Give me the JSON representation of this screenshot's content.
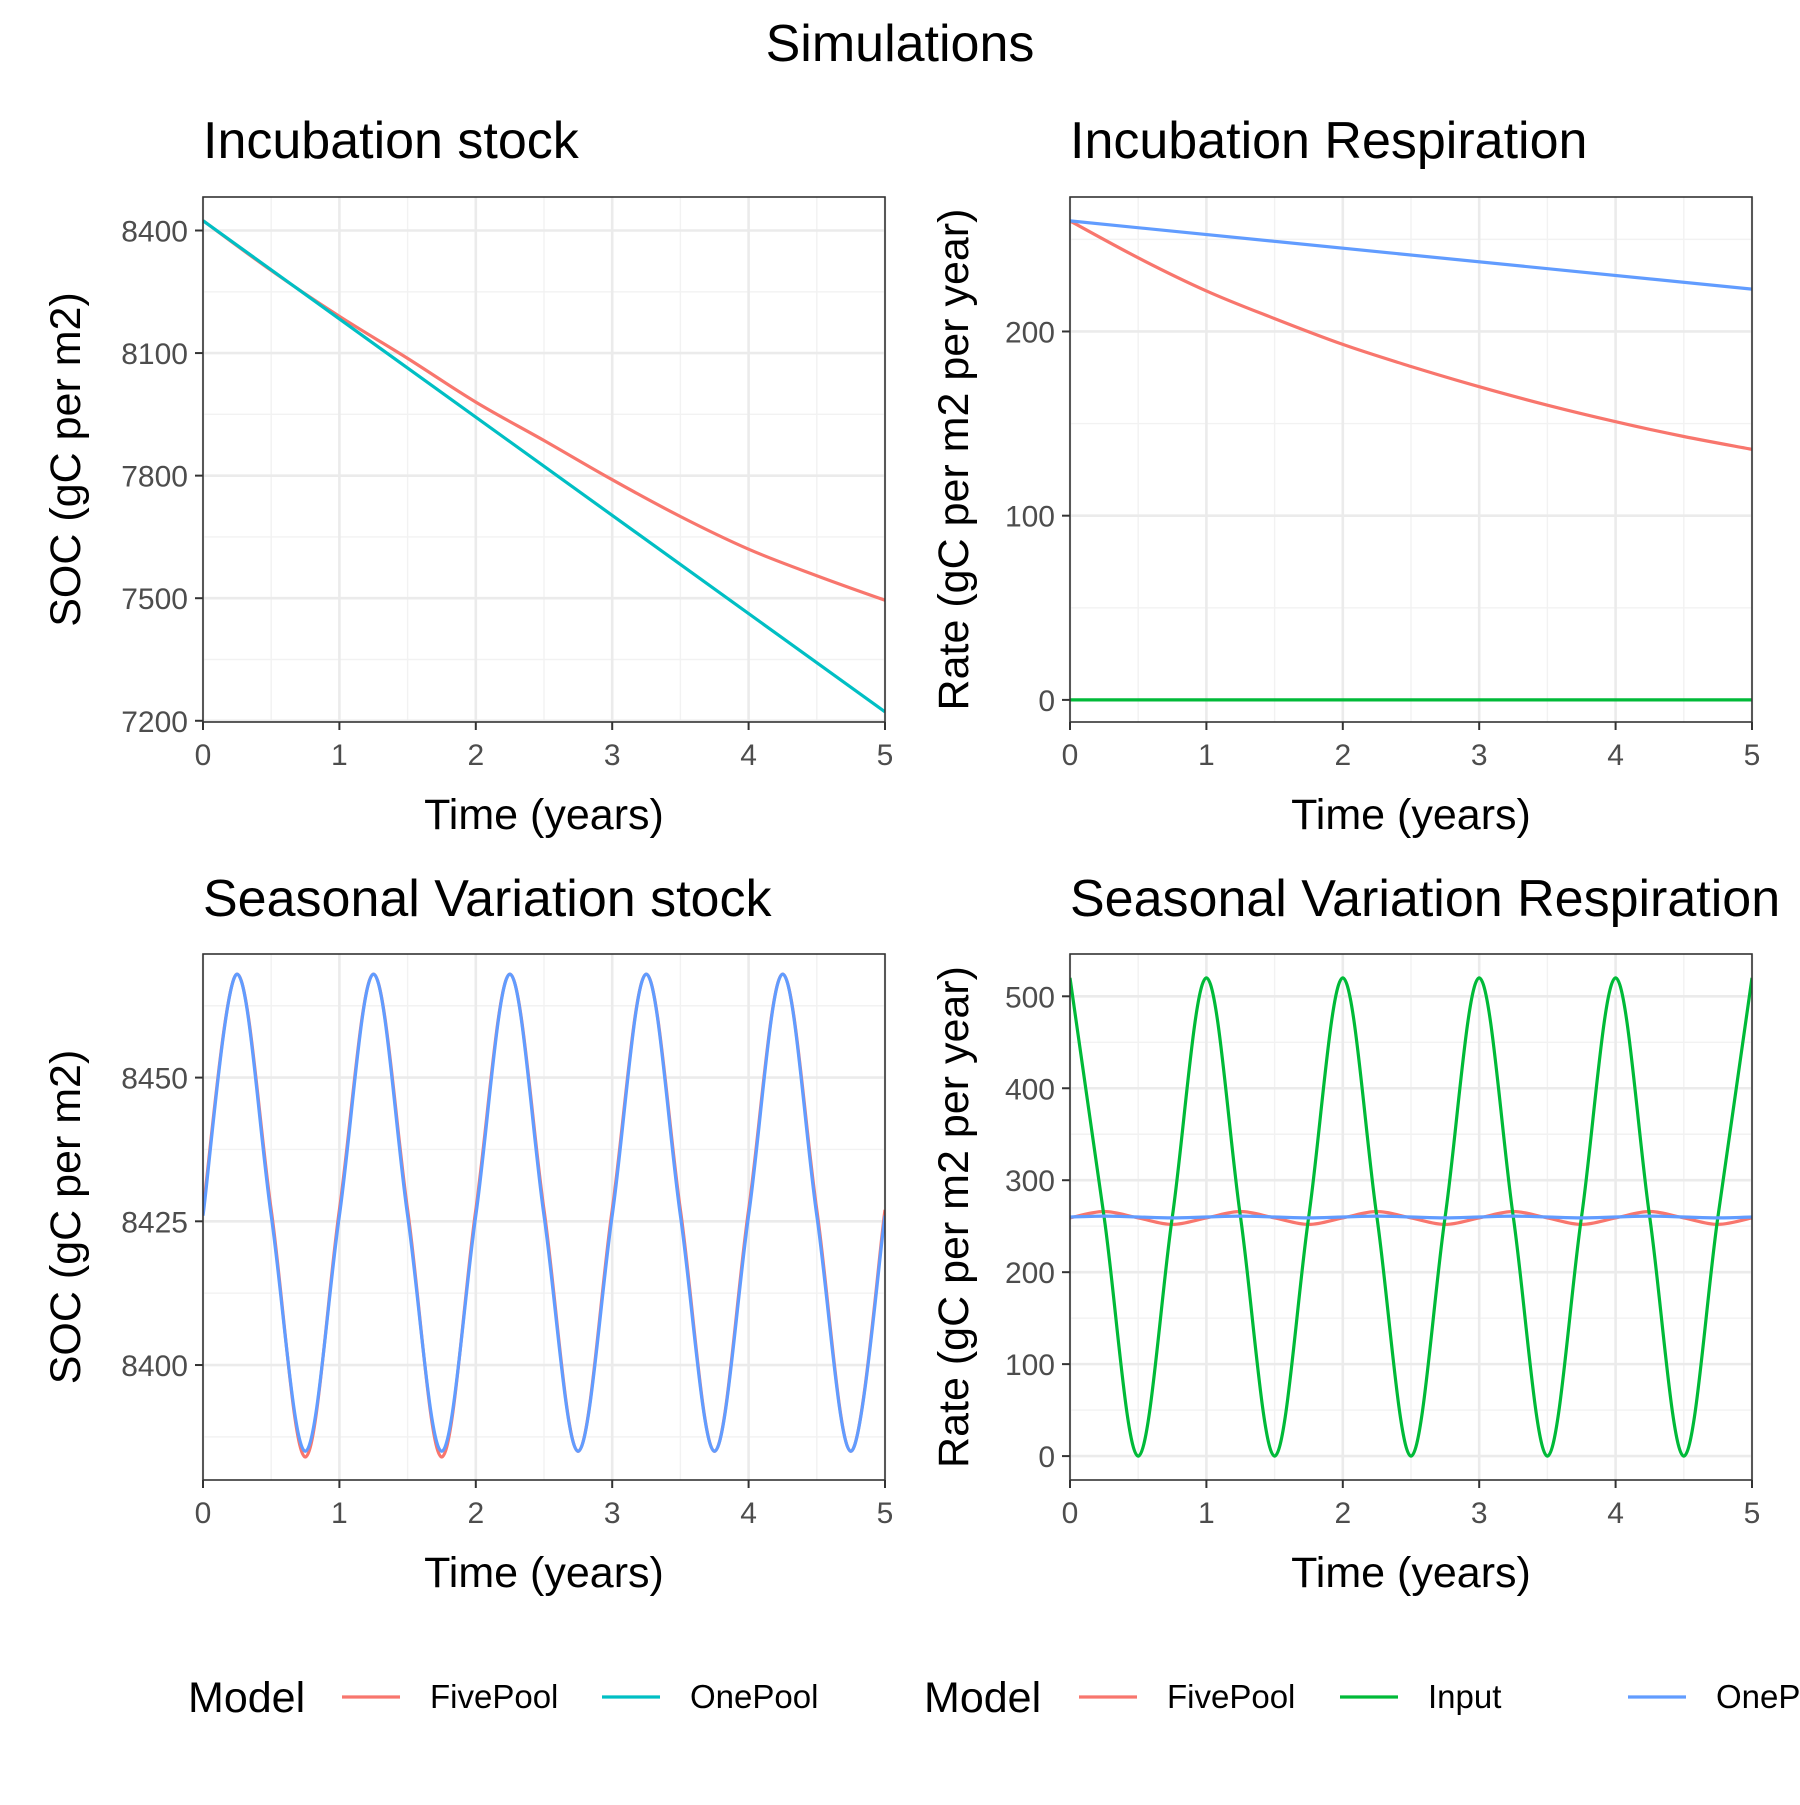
{
  "suptitle": "Simulations",
  "colors": {
    "FivePool": "#F8766D",
    "OnePool": "#00BFC4",
    "Input": "#00BA38",
    "OnePool2": "#619CFF"
  },
  "legends": [
    {
      "title": "Model",
      "items": [
        {
          "label": "FivePool",
          "color": "#F8766D"
        },
        {
          "label": "OnePool",
          "color": "#00BFC4"
        }
      ]
    },
    {
      "title": "Model",
      "items": [
        {
          "label": "FivePool",
          "color": "#F8766D"
        },
        {
          "label": "Input",
          "color": "#00BA38"
        },
        {
          "label": "OnePool",
          "color": "#619CFF"
        }
      ]
    }
  ],
  "chart_data": [
    {
      "type": "line",
      "title": "Incubation stock",
      "xlabel": "Time (years)",
      "ylabel": "SOC (gC per m2)",
      "xlim": [
        0,
        5
      ],
      "ylim": [
        7197,
        8482
      ],
      "xticks": [
        0,
        1,
        2,
        3,
        4,
        5
      ],
      "yticks": [
        7200,
        7500,
        7800,
        8100,
        8400
      ],
      "grid": true,
      "legend": "bottom",
      "series": [
        {
          "name": "FivePool",
          "color": "#F8766D",
          "x": [
            0,
            0.5,
            1,
            1.5,
            2,
            2.5,
            3,
            3.5,
            4,
            4.5,
            5
          ],
          "y": [
            8424,
            8302,
            8190,
            8087,
            7980,
            7886,
            7790,
            7700,
            7620,
            7555,
            7495
          ]
        },
        {
          "name": "OnePool",
          "color": "#00BFC4",
          "x": [
            0,
            5
          ],
          "y": [
            8424,
            7222
          ]
        }
      ]
    },
    {
      "type": "line",
      "title": "Incubation Respiration",
      "xlabel": "Time (years)",
      "ylabel": "Rate (gC per m2 per year)",
      "xlim": [
        0,
        5
      ],
      "ylim": [
        -12,
        273
      ],
      "xticks": [
        0,
        1,
        2,
        3,
        4,
        5
      ],
      "yticks": [
        0,
        100,
        200
      ],
      "grid": true,
      "legend": "bottom",
      "series": [
        {
          "name": "FivePool",
          "color": "#F8766D",
          "x": [
            0,
            0.5,
            1,
            1.5,
            2,
            2.5,
            3,
            3.5,
            4,
            4.5,
            5
          ],
          "y": [
            260,
            240,
            222,
            207,
            193,
            181,
            170,
            160,
            151,
            143,
            136
          ]
        },
        {
          "name": "Input",
          "color": "#00BA38",
          "x": [
            0,
            5
          ],
          "y": [
            0,
            0
          ]
        },
        {
          "name": "OnePool",
          "color": "#619CFF",
          "x": [
            0,
            5
          ],
          "y": [
            260,
            223
          ]
        }
      ]
    },
    {
      "type": "line",
      "title": "Seasonal Variation stock",
      "xlabel": "Time (years)",
      "ylabel": "SOC (gC per m2)",
      "xlim": [
        0,
        5
      ],
      "ylim": [
        8380,
        8471.5
      ],
      "xticks": [
        0,
        1,
        2,
        3,
        4,
        5
      ],
      "yticks": [
        8400,
        8425,
        8450
      ],
      "grid": true,
      "legend": "bottom",
      "series": [
        {
          "name": "FivePool",
          "color": "#F8766D",
          "x": [
            0,
            0.25,
            0.5,
            0.75,
            1,
            1.25,
            1.5,
            1.75,
            2,
            2.25,
            2.5,
            2.75,
            3,
            3.25,
            3.5,
            3.75,
            4,
            4.25,
            4.5,
            4.75,
            5
          ],
          "y": [
            8427,
            8468,
            8427,
            8384,
            8427,
            8468,
            8427,
            8384,
            8427,
            8468,
            8427,
            8385,
            8427,
            8468,
            8427,
            8385,
            8427,
            8468,
            8427,
            8385,
            8427
          ]
        },
        {
          "name": "OnePool",
          "color": "#619CFF",
          "x": [
            0,
            0.25,
            0.5,
            0.75,
            1,
            1.25,
            1.5,
            1.75,
            2,
            2.25,
            2.5,
            2.75,
            3,
            3.25,
            3.5,
            3.75,
            4,
            4.25,
            4.5,
            4.75,
            5
          ],
          "y": [
            8426,
            8468,
            8426,
            8385,
            8426,
            8468,
            8426,
            8385,
            8426,
            8468,
            8426,
            8385,
            8426,
            8468,
            8426,
            8385,
            8426,
            8468,
            8426,
            8385,
            8426
          ]
        }
      ]
    },
    {
      "type": "line",
      "title": "Seasonal Variation Respiration",
      "xlabel": "Time (years)",
      "ylabel": "Rate (gC per m2 per year)",
      "xlim": [
        0,
        5
      ],
      "ylim": [
        -26,
        546
      ],
      "xticks": [
        0,
        1,
        2,
        3,
        4,
        5
      ],
      "yticks": [
        0,
        100,
        200,
        300,
        400,
        500
      ],
      "grid": true,
      "legend": "bottom",
      "series": [
        {
          "name": "FivePool",
          "color": "#F8766D",
          "x": [
            0,
            0.25,
            0.5,
            0.75,
            1,
            1.25,
            1.5,
            1.75,
            2,
            2.25,
            2.5,
            2.75,
            3,
            3.25,
            3.5,
            3.75,
            4,
            4.25,
            4.5,
            4.75,
            5
          ],
          "y": [
            259,
            266,
            259,
            252,
            259,
            266,
            259,
            252,
            259,
            266,
            259,
            252,
            259,
            266,
            259,
            252,
            259,
            266,
            259,
            252,
            259
          ]
        },
        {
          "name": "Input",
          "color": "#00BA38",
          "x": [
            0,
            0.25,
            0.5,
            0.75,
            1,
            1.25,
            1.5,
            1.75,
            2,
            2.25,
            2.5,
            2.75,
            3,
            3.25,
            3.5,
            3.75,
            4,
            4.25,
            4.5,
            4.75,
            5
          ],
          "y": [
            520,
            260,
            0,
            260,
            520,
            260,
            0,
            260,
            520,
            260,
            0,
            260,
            520,
            260,
            0,
            260,
            520,
            260,
            0,
            260,
            520
          ]
        },
        {
          "name": "OnePool",
          "color": "#619CFF",
          "x": [
            0,
            0.25,
            0.5,
            0.75,
            1,
            1.25,
            1.5,
            1.75,
            2,
            2.25,
            2.5,
            2.75,
            3,
            3.25,
            3.5,
            3.75,
            4,
            4.25,
            4.5,
            4.75,
            5
          ],
          "y": [
            260,
            261,
            260,
            259,
            260,
            261,
            260,
            259,
            260,
            261,
            260,
            259,
            260,
            261,
            260,
            259,
            260,
            261,
            260,
            259,
            260
          ]
        }
      ]
    }
  ]
}
